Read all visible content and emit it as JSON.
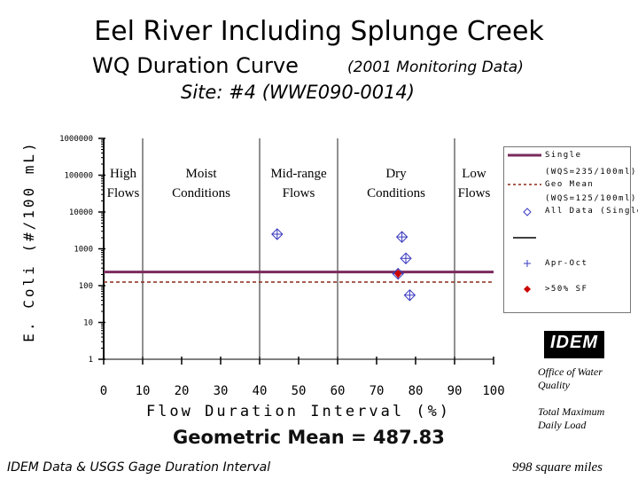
{
  "title": {
    "line1": "Eel River Including Splunge Creek",
    "line2": "WQ Duration Curve",
    "line2_note": "(2001 Monitoring Data)",
    "line3": "Site: #4 (WWE090-0014)"
  },
  "legend": {
    "single": "Single",
    "single_sub": "(WQS=235/100ml)",
    "geo": "Geo Mean",
    "geo_sub": "(WQS=125/100ml)",
    "all": "All Data (Single)",
    "aprocto": "Apr-Oct",
    "over50": ">50% SF"
  },
  "footer": {
    "geomean": "Geometric Mean = 487.83",
    "source": "IDEM Data & USGS Gage Duration Interval",
    "area": "998 square miles",
    "office": [
      "Office of Water",
      "Quality"
    ],
    "tmdl": [
      "Total Maximum",
      "Daily Load"
    ],
    "logo": "IDEM"
  },
  "colors": {
    "single_line": "#7a2a5c",
    "geo_line": "#8b2a1a",
    "marker_blue": "#3a3ac0",
    "marker_red": "#cc0000"
  },
  "chart_data": {
    "type": "scatter",
    "xlabel": "Flow Duration Interval (%)",
    "ylabel": "E. Coli (#/100 mL)",
    "xlim": [
      0,
      100
    ],
    "ylim": [
      1,
      1000000
    ],
    "yscale": "log",
    "xticks": [
      0,
      10,
      20,
      30,
      40,
      50,
      60,
      70,
      80,
      90,
      100
    ],
    "ytick_labels": [
      "1",
      "10",
      "100",
      "1000",
      "10000",
      "100000",
      "1000000"
    ],
    "zones": [
      {
        "label": [
          "High",
          "Flows"
        ],
        "x": 5
      },
      {
        "label": [
          "Moist",
          "Conditions"
        ],
        "x": 25
      },
      {
        "label": [
          "Mid-range",
          "Flows"
        ],
        "x": 50
      },
      {
        "label": [
          "Dry",
          "Conditions"
        ],
        "x": 75
      },
      {
        "label": [
          "Low",
          "Flows"
        ],
        "x": 95
      }
    ],
    "zone_dividers": [
      10,
      40,
      60,
      90
    ],
    "reference_lines": [
      {
        "name": "Single",
        "y": 235,
        "style": "solid"
      },
      {
        "name": "Geo Mean",
        "y": 125,
        "style": "dashed"
      }
    ],
    "series": [
      {
        "name": "All Data (Single)",
        "marker": "diamond",
        "points": [
          [
            44.5,
            2500
          ],
          [
            76.5,
            2100
          ],
          [
            77.5,
            550
          ],
          [
            75.5,
            210
          ],
          [
            78.5,
            55
          ]
        ]
      },
      {
        "name": "Apr-Oct",
        "marker": "plus",
        "points": [
          [
            44.5,
            2500
          ],
          [
            76.5,
            2100
          ],
          [
            77.5,
            550
          ],
          [
            75.5,
            210
          ],
          [
            78.5,
            55
          ]
        ]
      },
      {
        "name": ">50% SF",
        "marker": "red-diamond",
        "points": [
          [
            75.5,
            210
          ]
        ]
      }
    ]
  }
}
